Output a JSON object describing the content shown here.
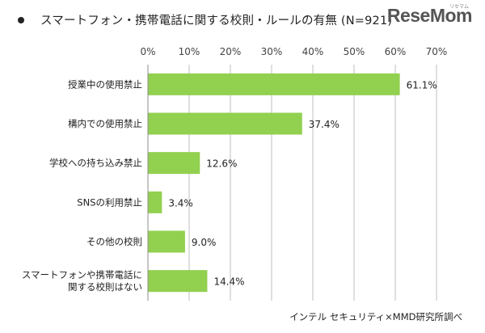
{
  "header": {
    "title": "スマートフォン・携帯電話に関する校則・ルールの有無 (N=921)",
    "logo_text": "ReseMom",
    "logo_ruby": "リセマム"
  },
  "source": "インテル セキュリティ×MMD研究所調べ",
  "chart_data": {
    "type": "bar",
    "orientation": "horizontal",
    "title": "スマートフォン・携帯電話に関する校則・ルールの有無 (N=921)",
    "categories": [
      [
        "授業中の使用禁止"
      ],
      [
        "構内での使用禁止"
      ],
      [
        "学校への持ち込み禁止"
      ],
      [
        "SNSの利用禁止"
      ],
      [
        "その他の校則"
      ],
      [
        "スマートフォンや携帯電話に",
        "関する校則はない"
      ]
    ],
    "values": [
      61.1,
      37.4,
      12.6,
      3.4,
      9.0,
      14.4
    ],
    "value_labels": [
      "61.1%",
      "37.4%",
      "12.6%",
      "3.4%",
      "9.0%",
      "14.4%"
    ],
    "xlim": [
      0,
      70
    ],
    "xticks": [
      0,
      10,
      20,
      30,
      40,
      50,
      60,
      70
    ],
    "xtick_labels": [
      "0%",
      "10%",
      "20%",
      "30%",
      "40%",
      "50%",
      "60%",
      "70%"
    ],
    "xlabel": "",
    "ylabel": "",
    "grid": true,
    "bar_color": "#92d050",
    "grid_color": "#bfbfbf"
  }
}
